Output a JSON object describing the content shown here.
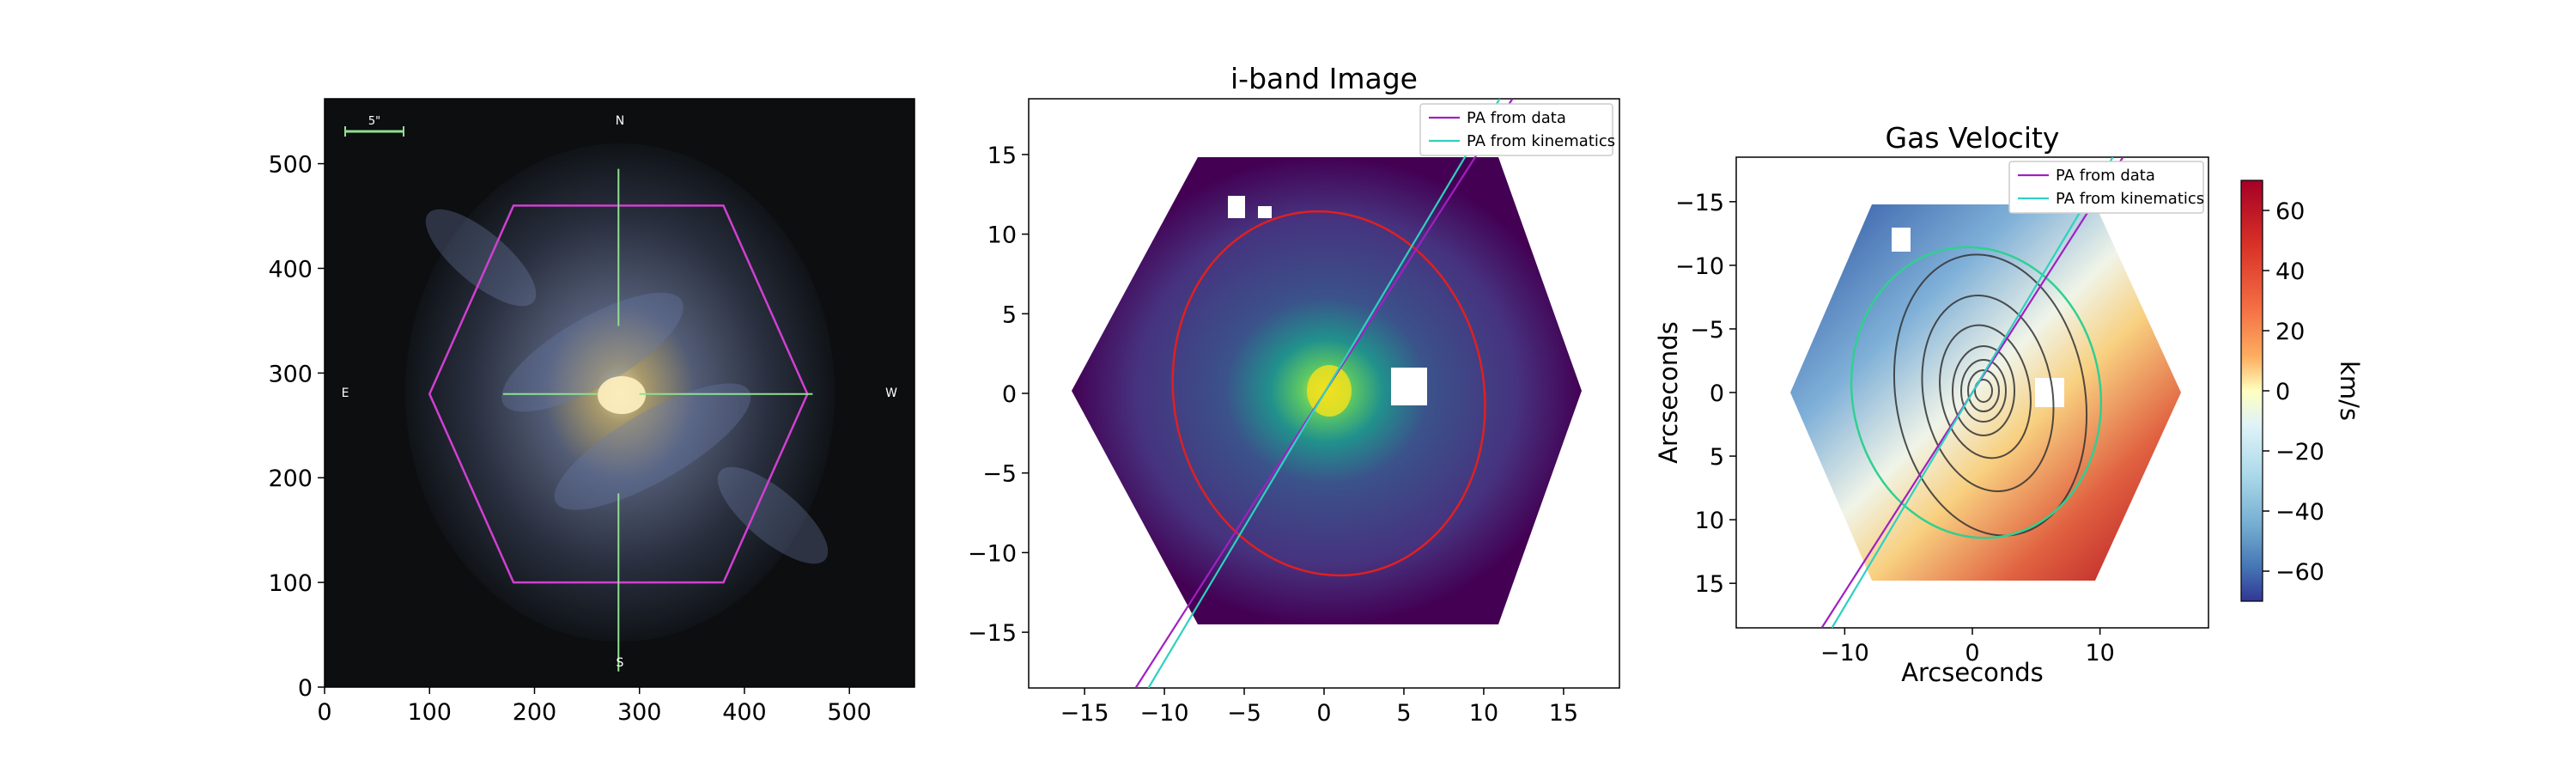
{
  "chart_data": [
    {
      "type": "image",
      "panel": "sdss-image",
      "title": "",
      "x_ticks": [
        0,
        100,
        200,
        300,
        400,
        500
      ],
      "y_ticks": [
        0,
        100,
        200,
        300,
        400,
        500
      ],
      "xlim": [
        0,
        562
      ],
      "ylim": [
        562,
        0
      ],
      "compass": {
        "N": "N",
        "S": "S",
        "E": "E",
        "W": "W"
      },
      "scale_bar_label": "5\"",
      "hexagon_color": "#d040d0",
      "crosshair_color": "#90e090",
      "galaxy_center": [
        280,
        280
      ]
    },
    {
      "type": "heatmap",
      "panel": "i-band",
      "title": "i-band Image",
      "xlim": [
        -18.5,
        18.5
      ],
      "ylim": [
        18.5,
        -18.5
      ],
      "x_ticks": [
        -15,
        -10,
        -5,
        0,
        5,
        10,
        15
      ],
      "y_ticks": [
        -15,
        -10,
        -5,
        0,
        5,
        10,
        15
      ],
      "colormap": "viridis",
      "legend": [
        {
          "label": "PA from data",
          "color": "#a020c0"
        },
        {
          "label": "PA from kinematics",
          "color": "#30d0c0"
        }
      ],
      "ellipse": {
        "center": [
          0.3,
          0
        ],
        "semi_major": 11.5,
        "semi_minor": 9.7,
        "color": "#e02020"
      },
      "pa_data_line": {
        "x": [
          -11.8,
          11.8
        ],
        "y": [
          -18.5,
          18.5
        ]
      },
      "pa_kin_line": {
        "x": [
          -11.0,
          11.0
        ],
        "y": [
          -18.5,
          18.5
        ]
      }
    },
    {
      "type": "heatmap",
      "panel": "gas-velocity",
      "title": "Gas Velocity",
      "xlabel": "Arcseconds",
      "ylabel": "Arcseconds",
      "xlim": [
        -18.5,
        18.5
      ],
      "ylim": [
        -18.5,
        18.5
      ],
      "x_ticks": [
        -10,
        0,
        10
      ],
      "y_ticks": [
        15,
        10,
        5,
        0,
        -5,
        -10,
        -15
      ],
      "colormap": "RdYlBu_r",
      "colorbar": {
        "label": "km/s",
        "ticks": [
          60,
          40,
          20,
          0,
          -20,
          -40,
          -60
        ],
        "range": [
          -70,
          70
        ]
      },
      "legend": [
        {
          "label": "PA from data",
          "color": "#a020c0"
        },
        {
          "label": "PA from kinematics",
          "color": "#30d0c0"
        }
      ],
      "ellipse": {
        "center": [
          0.3,
          0
        ],
        "semi_major": 11.5,
        "semi_minor": 9.7,
        "color": "#30d090"
      },
      "pa_data_line": {
        "x": [
          -11.8,
          11.8
        ],
        "y": [
          18.5,
          -18.5
        ]
      },
      "pa_kin_line": {
        "x": [
          -11.0,
          11.0
        ],
        "y": [
          18.5,
          -18.5
        ]
      }
    }
  ]
}
